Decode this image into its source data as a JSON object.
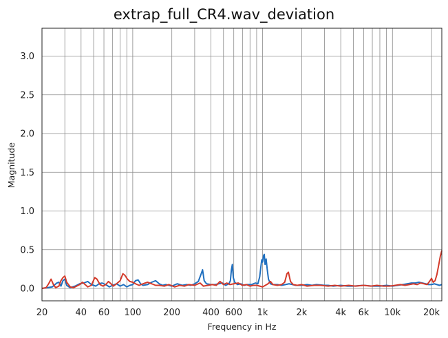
{
  "chart_data": {
    "type": "line",
    "title": "extrap_full_CR4.wav_deviation",
    "xlabel": "Frequency in Hz",
    "ylabel": "Magnitude",
    "x_scale": "log",
    "xlim": [
      20,
      24000
    ],
    "ylim": [
      -0.16,
      3.36
    ],
    "grid": true,
    "x_ticks": [
      20,
      30,
      40,
      50,
      60,
      70,
      80,
      90,
      100,
      200,
      300,
      400,
      500,
      600,
      700,
      800,
      900,
      1000,
      2000,
      3000,
      4000,
      5000,
      6000,
      7000,
      8000,
      9000,
      10000,
      20000
    ],
    "x_tick_labels": [
      {
        "value": 20,
        "label": "20"
      },
      {
        "value": 40,
        "label": "40"
      },
      {
        "value": 60,
        "label": "60"
      },
      {
        "value": 100,
        "label": "100"
      },
      {
        "value": 200,
        "label": "200"
      },
      {
        "value": 400,
        "label": "400"
      },
      {
        "value": 600,
        "label": "600"
      },
      {
        "value": 1000,
        "label": "1k"
      },
      {
        "value": 2000,
        "label": "2k"
      },
      {
        "value": 4000,
        "label": "4k"
      },
      {
        "value": 6000,
        "label": "6k"
      },
      {
        "value": 10000,
        "label": "10k"
      },
      {
        "value": 20000,
        "label": "20k"
      }
    ],
    "y_ticks": [
      {
        "value": 0.0,
        "label": "0.0"
      },
      {
        "value": 0.5,
        "label": "0.5"
      },
      {
        "value": 1.0,
        "label": "1.0"
      },
      {
        "value": 1.5,
        "label": "1.5"
      },
      {
        "value": 2.0,
        "label": "2.0"
      },
      {
        "value": 2.5,
        "label": "2.5"
      },
      {
        "value": 3.0,
        "label": "3.0"
      }
    ],
    "series": [
      {
        "color": "#1f6fbf",
        "points": [
          [
            20,
            0.0
          ],
          [
            22,
            0.01
          ],
          [
            24,
            0.02
          ],
          [
            26,
            0.07
          ],
          [
            27,
            0.08
          ],
          [
            28,
            0.03
          ],
          [
            29,
            0.1
          ],
          [
            30,
            0.12
          ],
          [
            31,
            0.04
          ],
          [
            33,
            0.01
          ],
          [
            36,
            0.03
          ],
          [
            39,
            0.06
          ],
          [
            42,
            0.07
          ],
          [
            45,
            0.09
          ],
          [
            48,
            0.05
          ],
          [
            52,
            0.03
          ],
          [
            55,
            0.06
          ],
          [
            58,
            0.07
          ],
          [
            62,
            0.05
          ],
          [
            66,
            0.02
          ],
          [
            70,
            0.04
          ],
          [
            75,
            0.06
          ],
          [
            80,
            0.03
          ],
          [
            85,
            0.05
          ],
          [
            90,
            0.02
          ],
          [
            95,
            0.04
          ],
          [
            100,
            0.05
          ],
          [
            105,
            0.1
          ],
          [
            110,
            0.11
          ],
          [
            115,
            0.06
          ],
          [
            120,
            0.04
          ],
          [
            130,
            0.05
          ],
          [
            140,
            0.08
          ],
          [
            150,
            0.1
          ],
          [
            160,
            0.06
          ],
          [
            170,
            0.04
          ],
          [
            180,
            0.05
          ],
          [
            200,
            0.03
          ],
          [
            220,
            0.06
          ],
          [
            240,
            0.04
          ],
          [
            260,
            0.05
          ],
          [
            280,
            0.04
          ],
          [
            300,
            0.06
          ],
          [
            320,
            0.09
          ],
          [
            335,
            0.18
          ],
          [
            345,
            0.24
          ],
          [
            355,
            0.1
          ],
          [
            370,
            0.06
          ],
          [
            400,
            0.05
          ],
          [
            430,
            0.05
          ],
          [
            460,
            0.06
          ],
          [
            490,
            0.07
          ],
          [
            520,
            0.04
          ],
          [
            550,
            0.06
          ],
          [
            565,
            0.1
          ],
          [
            575,
            0.24
          ],
          [
            585,
            0.31
          ],
          [
            595,
            0.14
          ],
          [
            610,
            0.08
          ],
          [
            640,
            0.05
          ],
          [
            680,
            0.06
          ],
          [
            720,
            0.04
          ],
          [
            760,
            0.05
          ],
          [
            820,
            0.05
          ],
          [
            880,
            0.07
          ],
          [
            920,
            0.06
          ],
          [
            950,
            0.15
          ],
          [
            970,
            0.28
          ],
          [
            985,
            0.37
          ],
          [
            1000,
            0.34
          ],
          [
            1015,
            0.42
          ],
          [
            1030,
            0.44
          ],
          [
            1045,
            0.31
          ],
          [
            1065,
            0.38
          ],
          [
            1085,
            0.25
          ],
          [
            1110,
            0.12
          ],
          [
            1150,
            0.06
          ],
          [
            1200,
            0.05
          ],
          [
            1300,
            0.05
          ],
          [
            1400,
            0.04
          ],
          [
            1500,
            0.05
          ],
          [
            1600,
            0.06
          ],
          [
            1700,
            0.05
          ],
          [
            1800,
            0.04
          ],
          [
            2000,
            0.04
          ],
          [
            2200,
            0.05
          ],
          [
            2400,
            0.04
          ],
          [
            2600,
            0.05
          ],
          [
            3000,
            0.04
          ],
          [
            3200,
            0.04
          ],
          [
            3500,
            0.03
          ],
          [
            4000,
            0.04
          ],
          [
            4500,
            0.03
          ],
          [
            5000,
            0.03
          ],
          [
            6000,
            0.04
          ],
          [
            7000,
            0.03
          ],
          [
            8000,
            0.03
          ],
          [
            9000,
            0.04
          ],
          [
            10000,
            0.03
          ],
          [
            11000,
            0.04
          ],
          [
            12000,
            0.05
          ],
          [
            13000,
            0.06
          ],
          [
            14000,
            0.07
          ],
          [
            15000,
            0.07
          ],
          [
            16000,
            0.08
          ],
          [
            17000,
            0.07
          ],
          [
            18000,
            0.06
          ],
          [
            19000,
            0.05
          ],
          [
            20000,
            0.05
          ],
          [
            21000,
            0.06
          ],
          [
            22000,
            0.05
          ],
          [
            23000,
            0.04
          ],
          [
            24000,
            0.05
          ]
        ]
      },
      {
        "color": "#d43a2a",
        "points": [
          [
            20,
            0.0
          ],
          [
            21.5,
            0.01
          ],
          [
            22.5,
            0.06
          ],
          [
            23.5,
            0.12
          ],
          [
            24.5,
            0.05
          ],
          [
            25.5,
            0.01
          ],
          [
            27,
            0.03
          ],
          [
            28,
            0.1
          ],
          [
            29,
            0.14
          ],
          [
            30,
            0.16
          ],
          [
            31,
            0.08
          ],
          [
            33,
            0.02
          ],
          [
            35,
            0.01
          ],
          [
            37,
            0.03
          ],
          [
            39,
            0.05
          ],
          [
            41,
            0.08
          ],
          [
            43,
            0.05
          ],
          [
            45,
            0.02
          ],
          [
            48,
            0.04
          ],
          [
            51,
            0.14
          ],
          [
            53,
            0.12
          ],
          [
            56,
            0.05
          ],
          [
            59,
            0.03
          ],
          [
            62,
            0.05
          ],
          [
            65,
            0.09
          ],
          [
            68,
            0.06
          ],
          [
            71,
            0.03
          ],
          [
            75,
            0.06
          ],
          [
            80,
            0.1
          ],
          [
            84,
            0.19
          ],
          [
            87,
            0.17
          ],
          [
            91,
            0.12
          ],
          [
            95,
            0.09
          ],
          [
            100,
            0.08
          ],
          [
            105,
            0.06
          ],
          [
            112,
            0.04
          ],
          [
            120,
            0.06
          ],
          [
            130,
            0.08
          ],
          [
            140,
            0.06
          ],
          [
            150,
            0.04
          ],
          [
            160,
            0.04
          ],
          [
            175,
            0.03
          ],
          [
            190,
            0.05
          ],
          [
            210,
            0.02
          ],
          [
            230,
            0.04
          ],
          [
            250,
            0.03
          ],
          [
            270,
            0.05
          ],
          [
            300,
            0.04
          ],
          [
            330,
            0.07
          ],
          [
            350,
            0.03
          ],
          [
            380,
            0.04
          ],
          [
            410,
            0.05
          ],
          [
            440,
            0.04
          ],
          [
            470,
            0.09
          ],
          [
            500,
            0.05
          ],
          [
            530,
            0.07
          ],
          [
            560,
            0.05
          ],
          [
            600,
            0.06
          ],
          [
            650,
            0.07
          ],
          [
            700,
            0.04
          ],
          [
            750,
            0.05
          ],
          [
            800,
            0.03
          ],
          [
            850,
            0.04
          ],
          [
            900,
            0.04
          ],
          [
            950,
            0.03
          ],
          [
            1000,
            0.02
          ],
          [
            1050,
            0.04
          ],
          [
            1100,
            0.06
          ],
          [
            1150,
            0.09
          ],
          [
            1200,
            0.05
          ],
          [
            1300,
            0.04
          ],
          [
            1400,
            0.05
          ],
          [
            1480,
            0.08
          ],
          [
            1540,
            0.19
          ],
          [
            1580,
            0.21
          ],
          [
            1640,
            0.09
          ],
          [
            1720,
            0.05
          ],
          [
            1850,
            0.04
          ],
          [
            2000,
            0.05
          ],
          [
            2200,
            0.03
          ],
          [
            2500,
            0.04
          ],
          [
            2800,
            0.04
          ],
          [
            3200,
            0.03
          ],
          [
            3600,
            0.04
          ],
          [
            4000,
            0.03
          ],
          [
            4600,
            0.04
          ],
          [
            5200,
            0.03
          ],
          [
            6000,
            0.04
          ],
          [
            6800,
            0.03
          ],
          [
            7600,
            0.04
          ],
          [
            8500,
            0.03
          ],
          [
            9500,
            0.03
          ],
          [
            10500,
            0.04
          ],
          [
            11500,
            0.05
          ],
          [
            12500,
            0.04
          ],
          [
            13500,
            0.05
          ],
          [
            14500,
            0.06
          ],
          [
            15500,
            0.05
          ],
          [
            16500,
            0.07
          ],
          [
            17500,
            0.06
          ],
          [
            18500,
            0.05
          ],
          [
            19300,
            0.09
          ],
          [
            20000,
            0.13
          ],
          [
            20600,
            0.08
          ],
          [
            21300,
            0.1
          ],
          [
            22000,
            0.18
          ],
          [
            22700,
            0.3
          ],
          [
            23400,
            0.42
          ],
          [
            24000,
            0.49
          ]
        ]
      }
    ]
  }
}
